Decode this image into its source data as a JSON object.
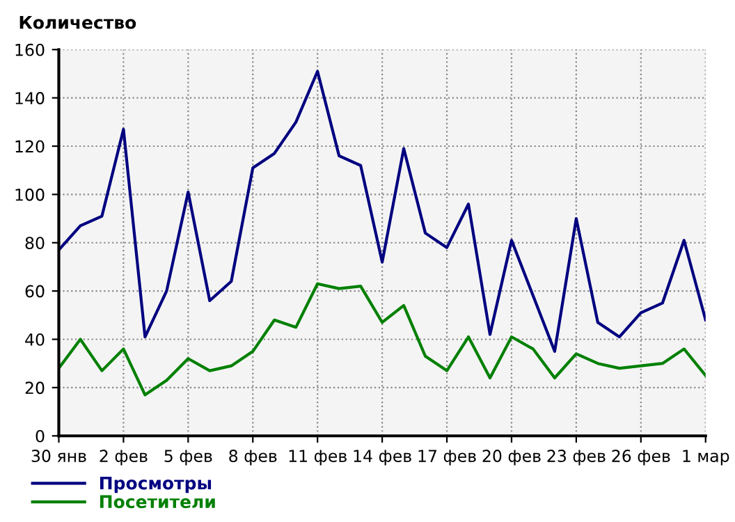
{
  "chart_data": {
    "type": "line",
    "title": "Количество",
    "categories": [
      "30 янв",
      null,
      null,
      "2 фев",
      null,
      null,
      "5 фев",
      null,
      null,
      "8 фев",
      null,
      null,
      "11 фев",
      null,
      null,
      "14 фев",
      null,
      null,
      "17 фев",
      null,
      null,
      "20 фев",
      null,
      null,
      "23 фев",
      null,
      null,
      "26 фев",
      null,
      null,
      "1 мар"
    ],
    "series": [
      {
        "name": "Просмотры",
        "color": "#000080",
        "values": [
          77,
          87,
          91,
          127,
          41,
          60,
          101,
          56,
          64,
          111,
          117,
          130,
          151,
          116,
          112,
          72,
          119,
          84,
          78,
          96,
          42,
          81,
          58,
          35,
          90,
          47,
          41,
          51,
          55,
          81,
          48
        ]
      },
      {
        "name": "Посетители",
        "color": "#008000",
        "values": [
          28,
          40,
          27,
          36,
          17,
          23,
          32,
          27,
          29,
          35,
          48,
          45,
          63,
          61,
          62,
          47,
          54,
          33,
          27,
          41,
          24,
          41,
          36,
          24,
          34,
          30,
          28,
          29,
          30,
          36,
          25
        ]
      }
    ],
    "ylim": [
      0,
      160
    ],
    "yticks": [
      0,
      20,
      40,
      60,
      80,
      100,
      120,
      140,
      160
    ],
    "grid": true,
    "legend": "bottom left",
    "marker": "none",
    "line_style": "solid"
  }
}
